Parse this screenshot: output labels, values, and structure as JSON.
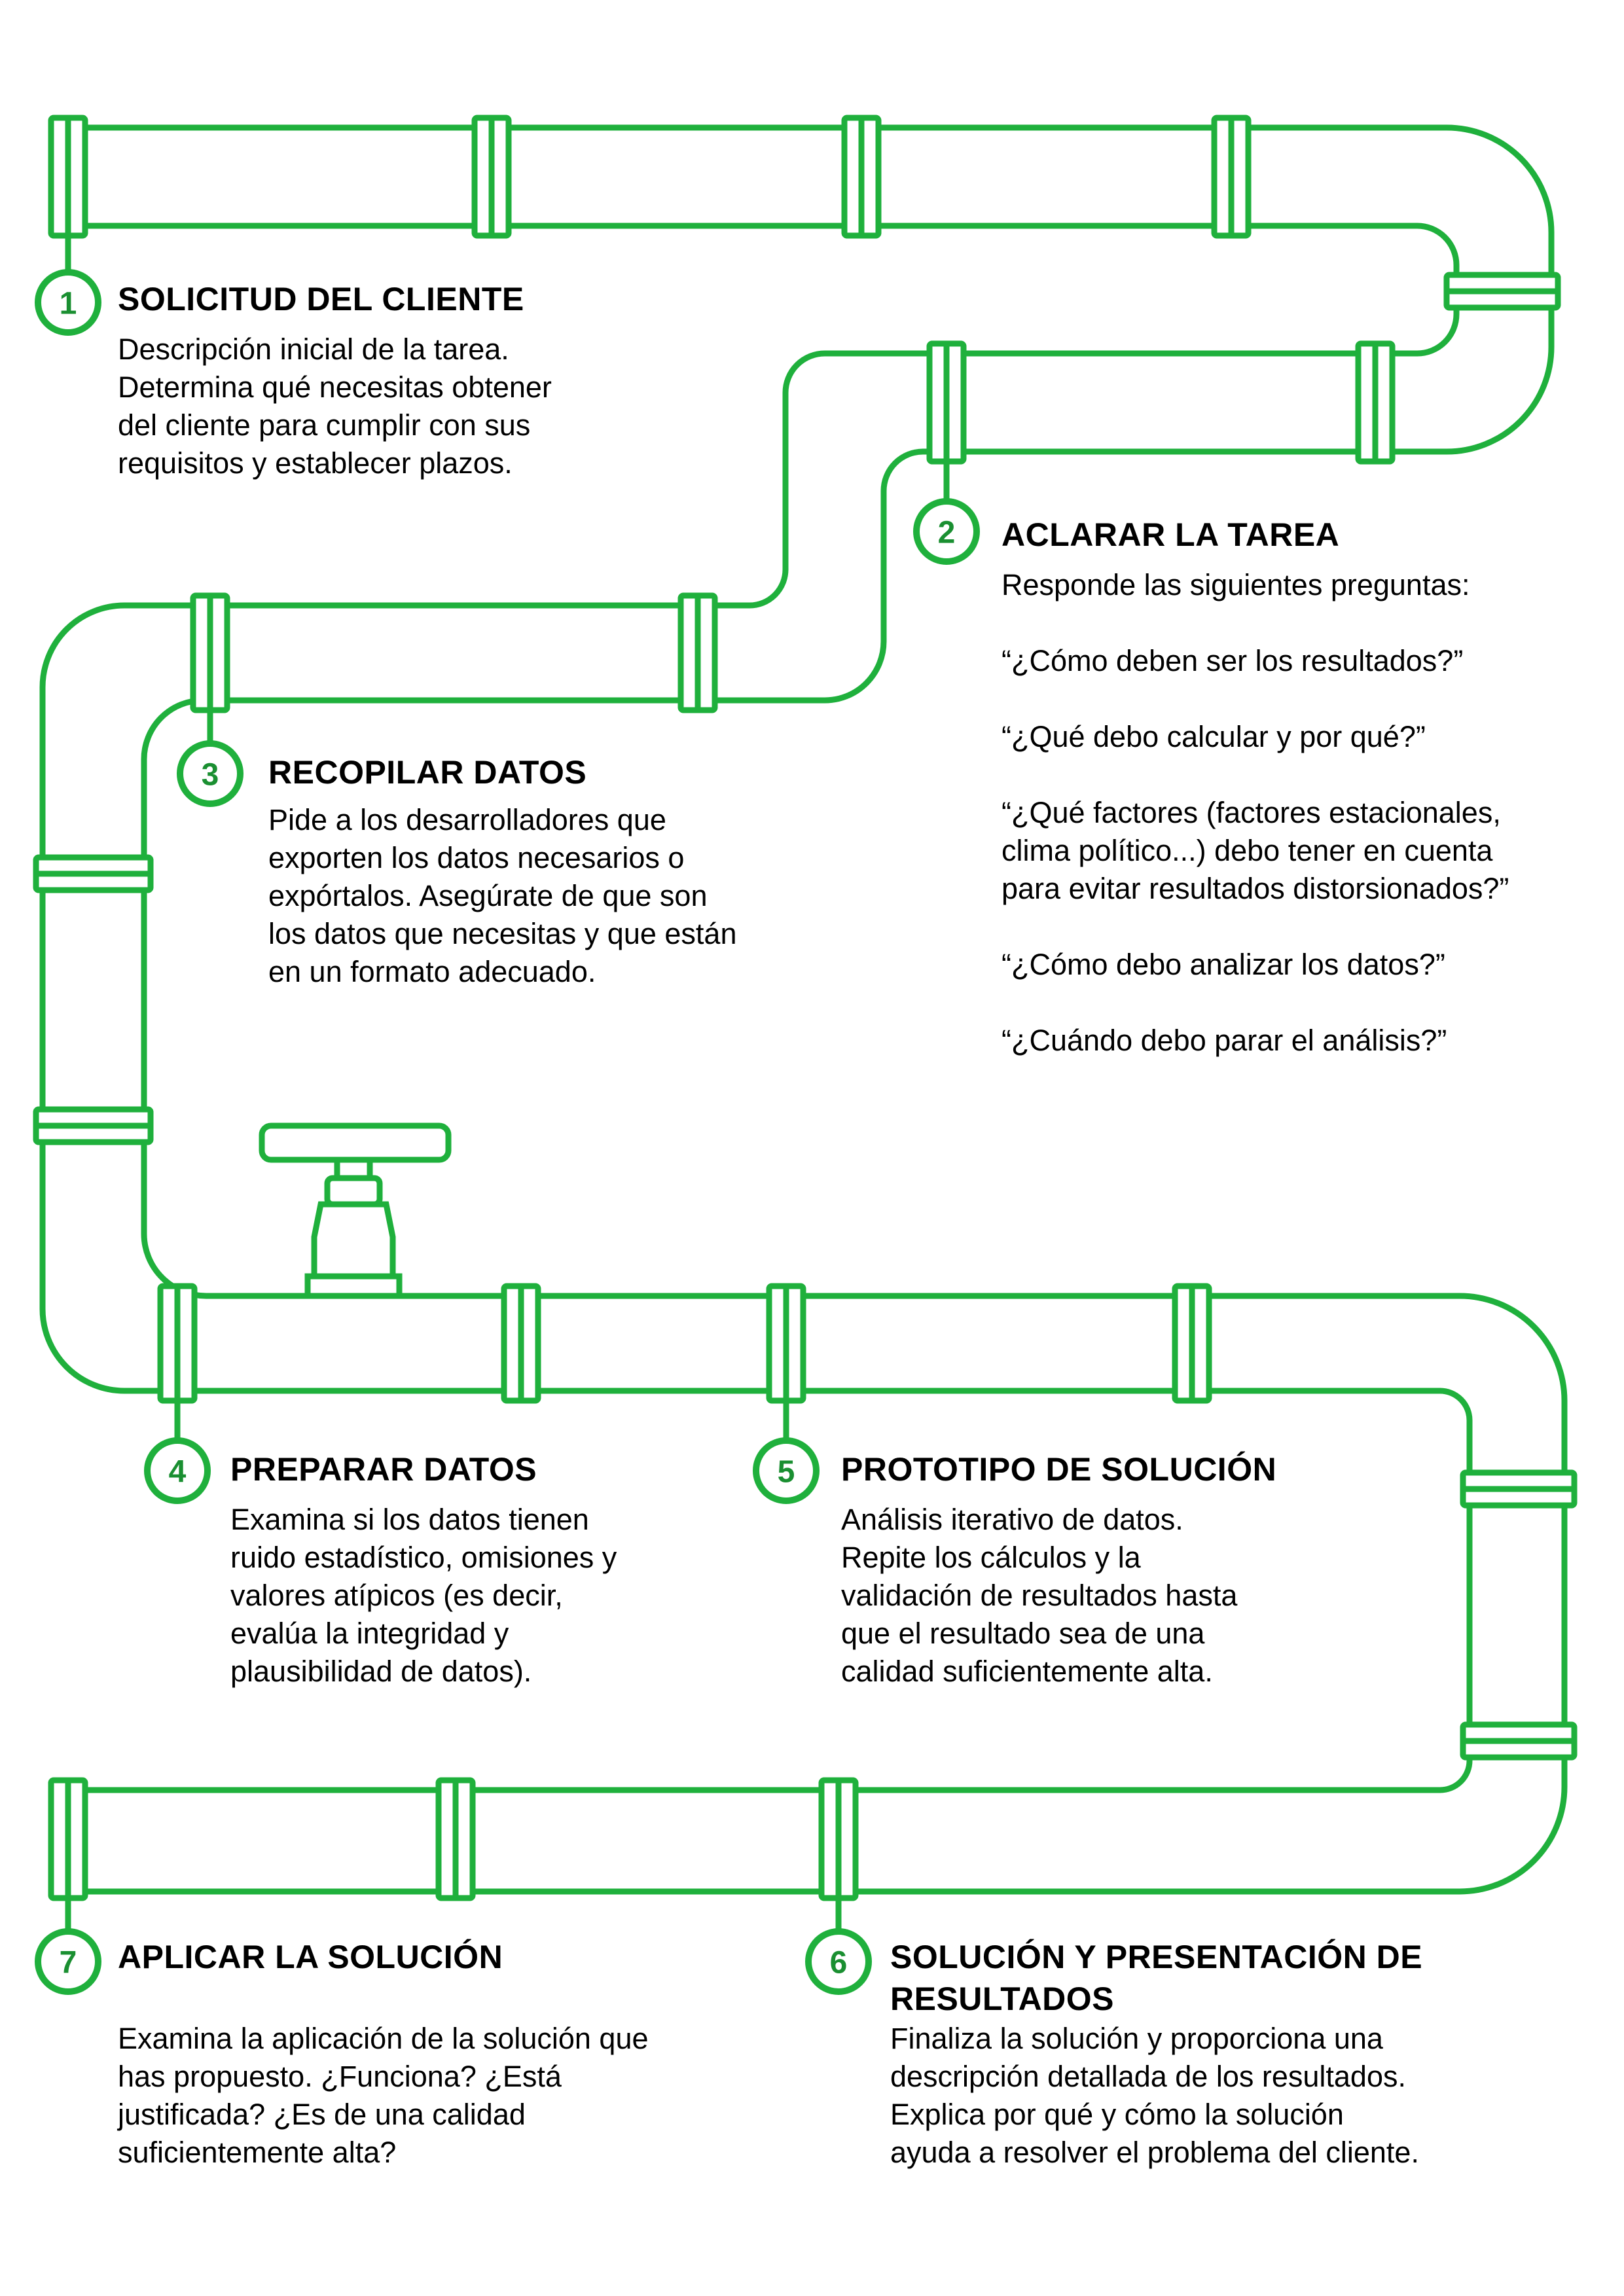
{
  "steps": [
    {
      "number": "1",
      "title": "SOLICITUD DEL CLIENTE",
      "body": "Descripción inicial de la tarea.\nDetermina qué necesitas obtener\ndel cliente para cumplir con sus\nrequisitos y establecer plazos."
    },
    {
      "number": "2",
      "title": "ACLARAR LA TAREA",
      "intro": "Responde las siguientes preguntas:",
      "questions": [
        "“¿Cómo deben ser los resultados?”",
        "“¿Qué debo calcular y por qué?”",
        "“¿Qué factores (factores estacionales,\nclima político...) debo tener en cuenta\npara evitar resultados distorsionados?”",
        "“¿Cómo debo analizar los datos?”",
        "“¿Cuándo debo parar el análisis?”"
      ]
    },
    {
      "number": "3",
      "title": "RECOPILAR DATOS",
      "body": "Pide a los desarrolladores que\nexporten los datos necesarios o\nexpórtalos. Asegúrate de que son\nlos datos que necesitas y que están\nen un formato adecuado."
    },
    {
      "number": "4",
      "title": "PREPARAR DATOS",
      "body": "Examina si los datos tienen\nruido estadístico, omisiones y\nvalores atípicos (es decir,\nevalúa la integridad y\nplausibilidad de datos)."
    },
    {
      "number": "5",
      "title": "PROTOTIPO DE SOLUCIÓN",
      "body": "Análisis iterativo de datos.\nRepite los cálculos y la\nvalidación de resultados hasta\nque el resultado sea de una\ncalidad suficientemente alta."
    },
    {
      "number": "6",
      "title": "SOLUCIÓN Y PRESENTACIÓN DE\nRESULTADOS",
      "body": "Finaliza la solución y proporciona una\ndescripción detallada de los resultados.\nExplica por qué y cómo la solución\nayuda a resolver el problema del cliente."
    },
    {
      "number": "7",
      "title": "APLICAR LA SOLUCIÓN",
      "body": "Examina la aplicación de la solución que\nhas propuesto. ¿Funciona? ¿Está\njustificada? ¿Es de una calidad\nsuficientemente alta?"
    }
  ],
  "colors": {
    "accent": "#1fb03c",
    "badge_text": "#1a8f31",
    "text": "#000000"
  }
}
